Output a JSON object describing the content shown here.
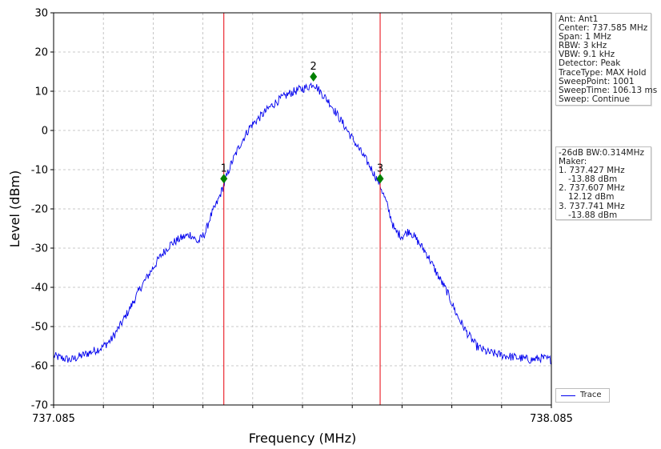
{
  "chart_data": {
    "type": "line",
    "xlabel": "Frequency (MHz)",
    "ylabel": "Level (dBm)",
    "xlim": [
      737.085,
      738.085
    ],
    "ylim": [
      -70,
      30
    ],
    "x_tick_labels": [
      "737.085",
      "738.085"
    ],
    "y_ticks": [
      30,
      20,
      10,
      0,
      -10,
      -20,
      -30,
      -40,
      -50,
      -60,
      -70
    ],
    "x_grid_divisions": 10,
    "grid": true,
    "series": [
      {
        "name": "Trace",
        "color": "#0000ee",
        "points": [
          [
            737.085,
            -57.5
          ],
          [
            737.1,
            -58.0
          ],
          [
            737.12,
            -58.5
          ],
          [
            737.14,
            -57.5
          ],
          [
            737.16,
            -56.5
          ],
          [
            737.18,
            -55.5
          ],
          [
            737.2,
            -53.5
          ],
          [
            737.22,
            -49.5
          ],
          [
            737.24,
            -45.0
          ],
          [
            737.26,
            -40.0
          ],
          [
            737.28,
            -36.0
          ],
          [
            737.3,
            -32.0
          ],
          [
            737.32,
            -29.0
          ],
          [
            737.34,
            -27.5
          ],
          [
            737.36,
            -26.5
          ],
          [
            737.375,
            -28.5
          ],
          [
            737.39,
            -26.0
          ],
          [
            737.4,
            -22.0
          ],
          [
            737.415,
            -18.0
          ],
          [
            737.427,
            -13.9
          ],
          [
            737.44,
            -9.0
          ],
          [
            737.46,
            -3.5
          ],
          [
            737.48,
            1.0
          ],
          [
            737.5,
            3.5
          ],
          [
            737.52,
            6.0
          ],
          [
            737.54,
            8.0
          ],
          [
            737.56,
            9.5
          ],
          [
            737.58,
            10.5
          ],
          [
            737.595,
            11.0
          ],
          [
            737.607,
            12.1
          ],
          [
            737.62,
            10.0
          ],
          [
            737.64,
            7.0
          ],
          [
            737.66,
            3.0
          ],
          [
            737.68,
            -1.0
          ],
          [
            737.7,
            -5.0
          ],
          [
            737.72,
            -9.0
          ],
          [
            737.741,
            -13.9
          ],
          [
            737.755,
            -19.0
          ],
          [
            737.77,
            -25.5
          ],
          [
            737.785,
            -27.0
          ],
          [
            737.8,
            -25.5
          ],
          [
            737.815,
            -28.0
          ],
          [
            737.835,
            -31.5
          ],
          [
            737.855,
            -36.5
          ],
          [
            737.875,
            -41.0
          ],
          [
            737.895,
            -47.0
          ],
          [
            737.915,
            -51.5
          ],
          [
            737.935,
            -55.0
          ],
          [
            737.955,
            -56.5
          ],
          [
            737.975,
            -57.0
          ],
          [
            737.995,
            -57.5
          ],
          [
            738.02,
            -58.0
          ],
          [
            738.045,
            -58.5
          ],
          [
            738.065,
            -58.0
          ],
          [
            738.085,
            -58.5
          ]
        ]
      }
    ],
    "markers": [
      {
        "label": "1",
        "x": 737.427,
        "y": -12.3
      },
      {
        "label": "2",
        "x": 737.607,
        "y": 13.7
      },
      {
        "label": "3",
        "x": 737.741,
        "y": -12.3
      }
    ],
    "marker_line_color": "#e8000b",
    "marker_point_color": "#008000"
  },
  "settings_box": [
    "Ant: Ant1",
    "Center: 737.585 MHz",
    "Span: 1 MHz",
    "RBW: 3 kHz",
    "VBW: 9.1 kHz",
    "Detector: Peak",
    "TraceType: MAX Hold",
    "SweepPoint: 1001",
    "SweepTime: 106.13 ms",
    "Sweep: Continue"
  ],
  "results_box": {
    "bandwidth": "-26dB BW:0.314MHz",
    "maker_title": "Maker:",
    "markers": [
      {
        "freq": "1. 737.427 MHz",
        "level": "-13.88 dBm"
      },
      {
        "freq": "2. 737.607 MHz",
        "level": "12.12 dBm"
      },
      {
        "freq": "3. 737.741 MHz",
        "level": "-13.88 dBm"
      }
    ]
  },
  "legend": {
    "label": "Trace"
  }
}
